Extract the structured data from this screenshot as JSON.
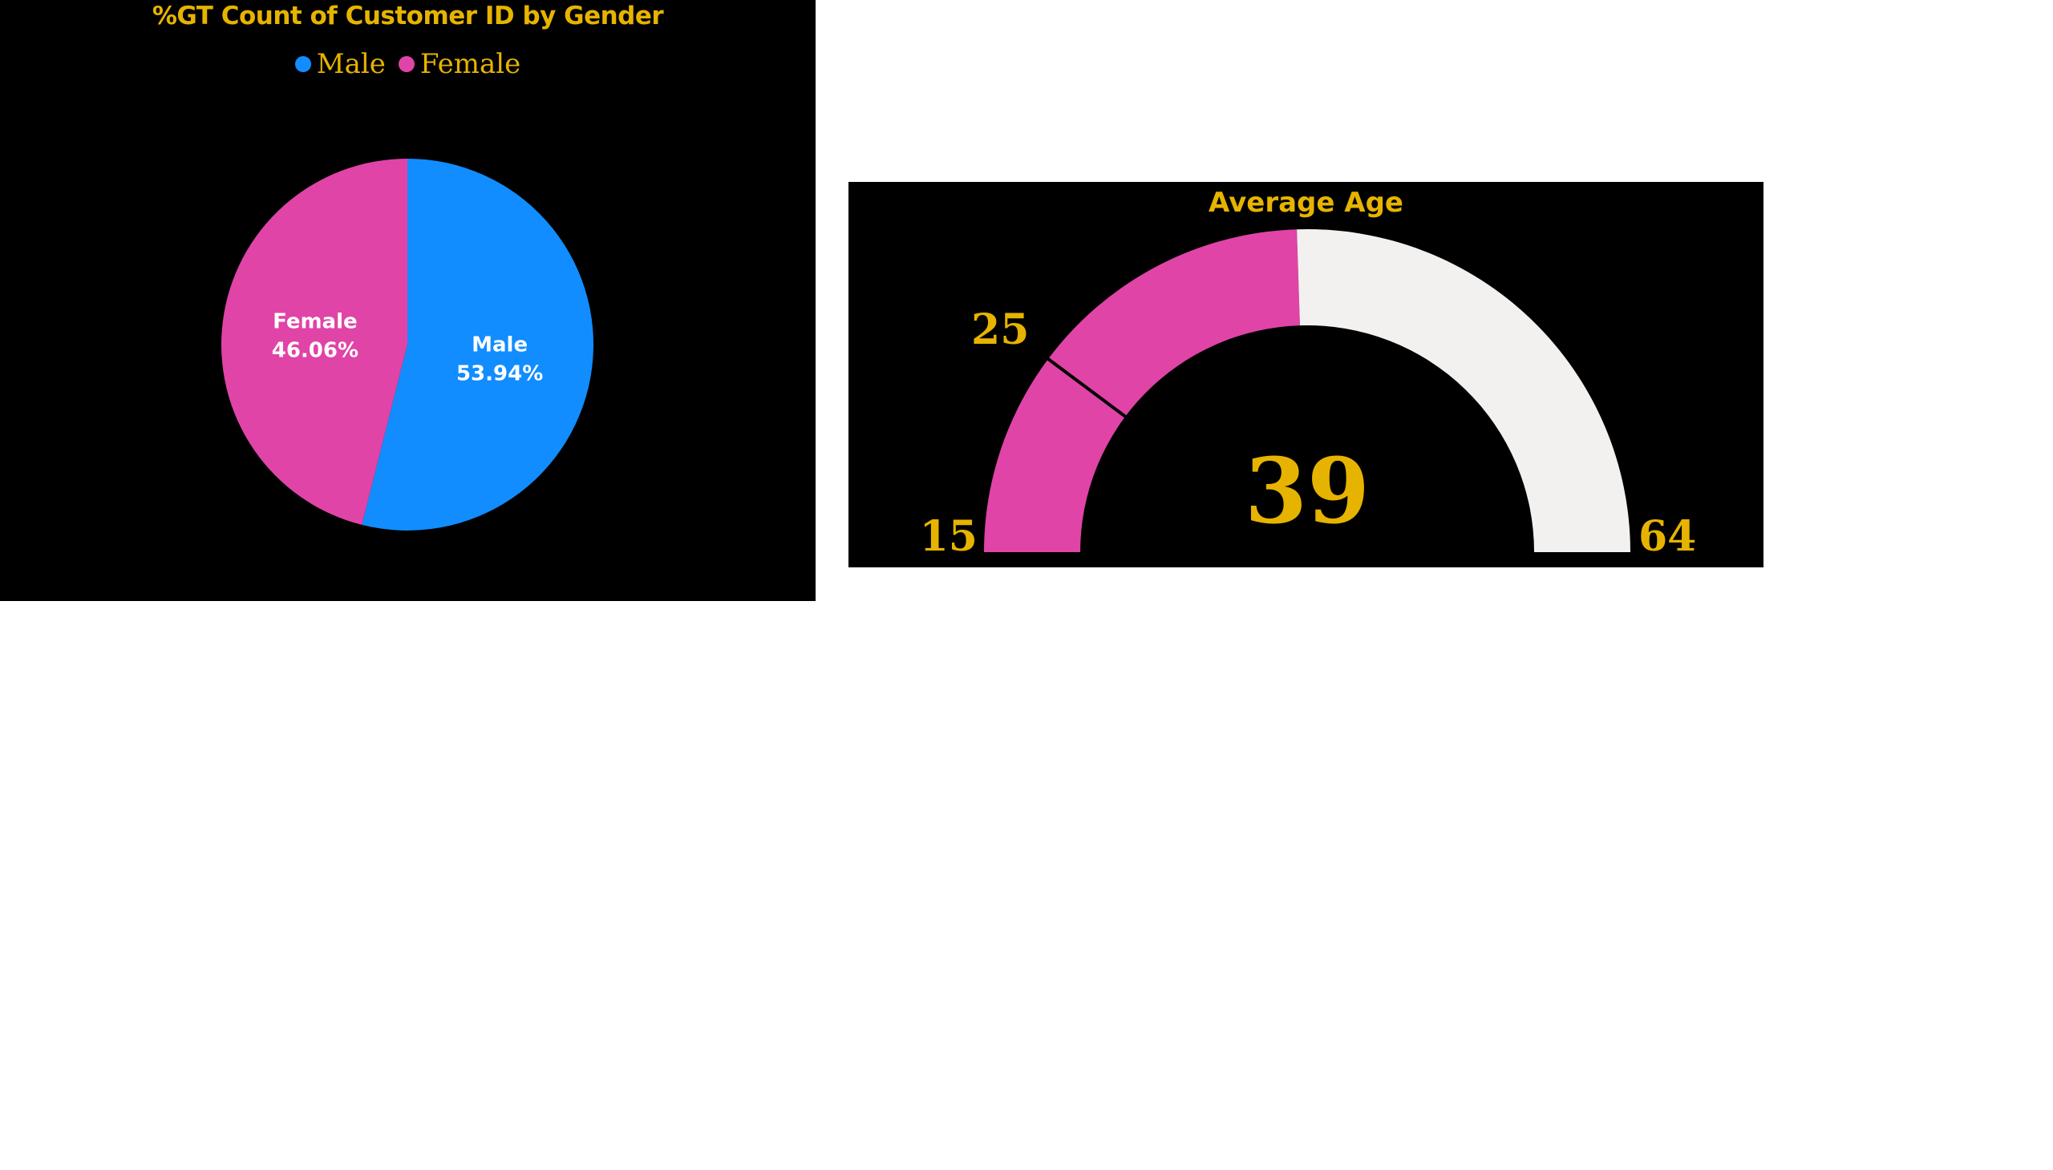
{
  "pie": {
    "title": "%GT Count of Customer ID by Gender",
    "legend": [
      {
        "label": "Male",
        "color": "#118dff"
      },
      {
        "label": "Female",
        "color": "#e044a7"
      }
    ]
  },
  "gauge": {
    "title": "Average Age",
    "value_label": "39",
    "min_label": "15",
    "max_label": "64",
    "target_label": "25"
  },
  "chart_data": [
    {
      "type": "pie",
      "title": "%GT Count of Customer ID by Gender",
      "series": [
        {
          "name": "Male",
          "value": 53.94,
          "label": "Male",
          "value_label": "53.94%",
          "color": "#118dff"
        },
        {
          "name": "Female",
          "value": 46.06,
          "label": "Female",
          "value_label": "46.06%",
          "color": "#e044a7"
        }
      ],
      "legend": "top-center"
    },
    {
      "type": "gauge",
      "title": "Average Age",
      "value": 39,
      "min": 15,
      "max": 64,
      "target": 25,
      "fill_color": "#e044a7",
      "track_color": "#f2f1f0",
      "text_color": "#e6b400"
    }
  ]
}
